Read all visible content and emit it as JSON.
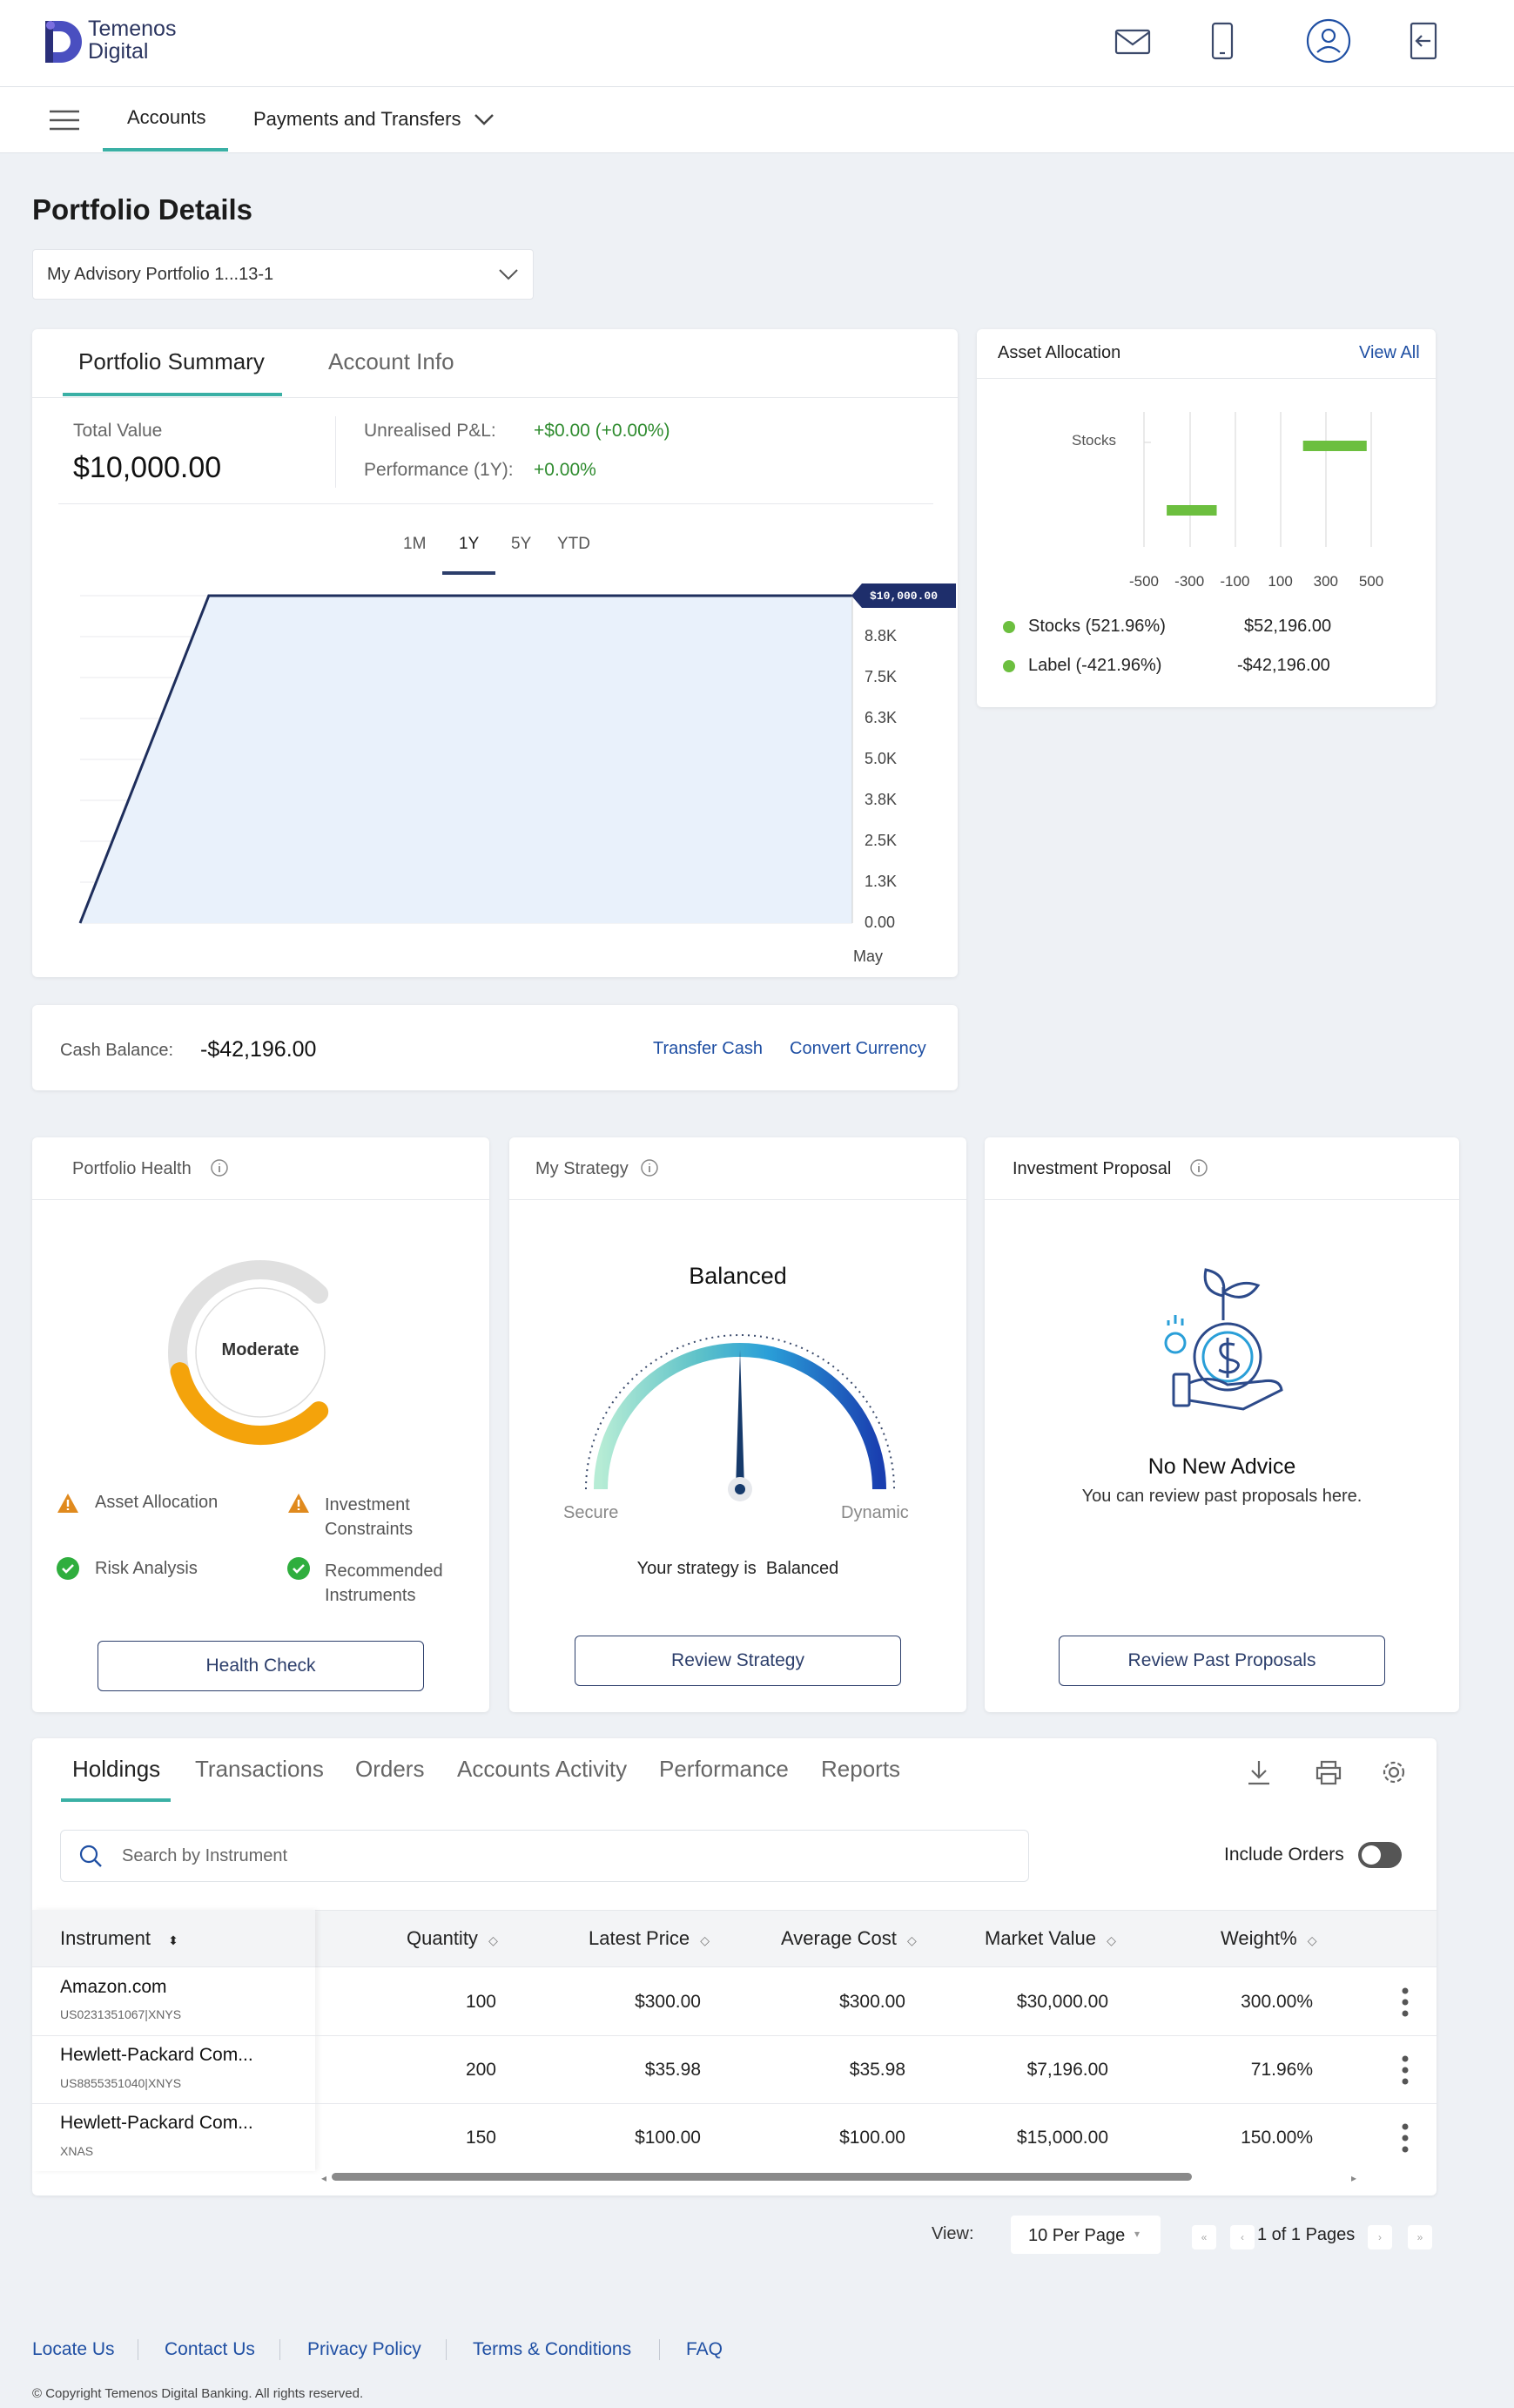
{
  "brand": {
    "line1": "Temenos",
    "line2": "Digital"
  },
  "nav": {
    "accounts": "Accounts",
    "payments": "Payments and Transfers"
  },
  "page": {
    "title": "Portfolio Details",
    "portfolio_select": "My Advisory Portfolio 1...13-1"
  },
  "summary": {
    "tab_summary": "Portfolio Summary",
    "tab_info": "Account Info",
    "total_value_label": "Total Value",
    "total_value": "$10,000.00",
    "pnl_label": "Unrealised P&L:",
    "pnl_value": "+$0.00 (+0.00%)",
    "perf_label": "Performance (1Y):",
    "perf_value": "+0.00%",
    "ranges": [
      "1M",
      "1Y",
      "5Y",
      "YTD"
    ],
    "active_range": "1Y",
    "tooltip": "$10,000.00",
    "x_label": "May"
  },
  "chart_data": {
    "type": "area",
    "x": [
      0,
      1,
      2,
      3,
      4,
      5,
      6,
      7,
      8,
      9,
      10,
      11,
      12
    ],
    "values": [
      0,
      5000,
      10000,
      10000,
      10000,
      10000,
      10000,
      10000,
      10000,
      10000,
      10000,
      10000,
      10000
    ],
    "yticks": [
      "0.00",
      "1.3K",
      "2.5K",
      "3.8K",
      "5.0K",
      "6.3K",
      "7.5K",
      "8.8K",
      "10.0K"
    ],
    "ylim": [
      0,
      10000
    ],
    "xlabel": "May"
  },
  "asset_allocation": {
    "title": "Asset Allocation",
    "view_all": "View All",
    "category": "Stocks",
    "xticks": [
      "-500",
      "-300",
      "-100",
      "100",
      "300",
      "500"
    ],
    "legend": [
      {
        "label": "Stocks",
        "pct": "(521.96%)",
        "value": "$52,196.00",
        "color": "#6cbf3f"
      },
      {
        "label": "Label",
        "pct": "(-421.96%)",
        "value": "-$42,196.00",
        "color": "#6cbf3f"
      }
    ]
  },
  "cash": {
    "label": "Cash Balance:",
    "value": "-$42,196.00",
    "transfer": "Transfer Cash",
    "convert": "Convert Currency"
  },
  "health": {
    "title": "Portfolio Health",
    "gauge_label": "Moderate",
    "score_pct": 45,
    "items": [
      {
        "label": "Asset Allocation",
        "status": "warning"
      },
      {
        "label": "Investment Constraints",
        "status": "warning"
      },
      {
        "label": "Risk Analysis",
        "status": "ok"
      },
      {
        "label": "Recommended Instruments",
        "status": "ok"
      }
    ],
    "button": "Health Check"
  },
  "strategy": {
    "title": "My Strategy",
    "name": "Balanced",
    "left": "Secure",
    "right": "Dynamic",
    "text_prefix": "Your strategy is",
    "text_value": "Balanced",
    "button": "Review Strategy"
  },
  "proposal": {
    "title": "Investment Proposal",
    "heading": "No New Advice",
    "sub": "You can review past proposals here.",
    "button": "Review Past Proposals"
  },
  "holdings": {
    "tabs": [
      "Holdings",
      "Transactions",
      "Orders",
      "Accounts Activity",
      "Performance",
      "Reports"
    ],
    "search_placeholder": "Search by Instrument",
    "include_orders": "Include Orders",
    "columns": [
      "Instrument",
      "Quantity",
      "Latest Price",
      "Average Cost",
      "Market Value",
      "Weight%"
    ],
    "rows": [
      {
        "name": "Amazon.com",
        "code": "US0231351067|XNYS",
        "qty": "100",
        "latest": "$300.00",
        "avg": "$300.00",
        "mv": "$30,000.00",
        "weight": "300.00%"
      },
      {
        "name": "Hewlett-Packard Com...",
        "code": "US8855351040|XNYS",
        "qty": "200",
        "latest": "$35.98",
        "avg": "$35.98",
        "mv": "$7,196.00",
        "weight": "71.96%"
      },
      {
        "name": "Hewlett-Packard Com...",
        "code": "XNAS",
        "qty": "150",
        "latest": "$100.00",
        "avg": "$100.00",
        "mv": "$15,000.00",
        "weight": "150.00%"
      }
    ]
  },
  "pager": {
    "view_label": "View:",
    "per_page": "10 Per Page",
    "pages": "1 of 1 Pages"
  },
  "footer": {
    "links": [
      "Locate Us",
      "Contact Us",
      "Privacy Policy",
      "Terms & Conditions",
      "FAQ"
    ],
    "copyright": "© Copyright Temenos Digital Banking. All rights reserved."
  }
}
